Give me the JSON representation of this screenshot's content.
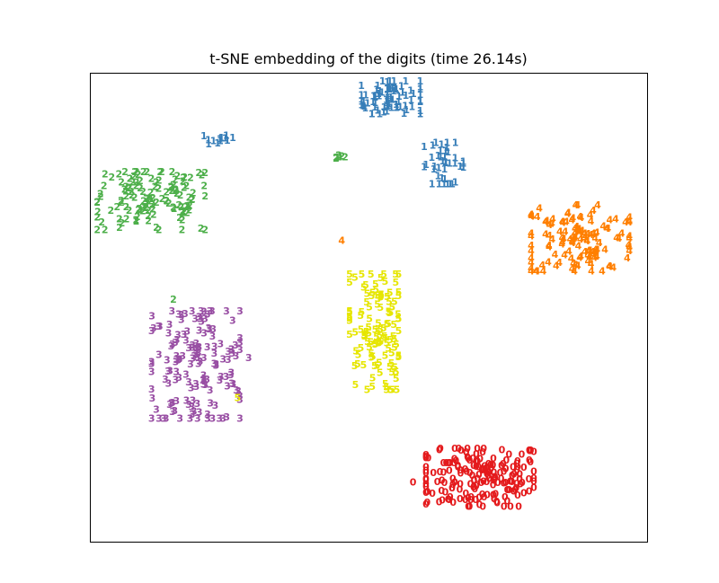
{
  "chart_data": {
    "type": "scatter",
    "title": "t-SNE embedding of the digits (time 26.14s)",
    "xlabel": "",
    "ylabel": "",
    "x_ticks": [],
    "y_ticks": [],
    "xlim": [
      0,
      1
    ],
    "ylim": [
      0,
      1
    ],
    "grid": false,
    "legend": null,
    "marker": "digit text label",
    "series": [
      {
        "label": "0",
        "color": "#e41a1c",
        "center": [
          0.7,
          0.13
        ],
        "spread": [
          0.11,
          0.07
        ],
        "count": 180
      },
      {
        "label": "1",
        "color": "#377eb8",
        "center": [
          0.54,
          0.94
        ],
        "spread": [
          0.06,
          0.04
        ],
        "count": 80
      },
      {
        "label": "1",
        "color": "#377eb8",
        "center": [
          0.23,
          0.85
        ],
        "spread": [
          0.03,
          0.01
        ],
        "count": 12
      },
      {
        "label": "1",
        "color": "#377eb8",
        "center": [
          0.635,
          0.8
        ],
        "spread": [
          0.04,
          0.05
        ],
        "count": 40
      },
      {
        "label": "2",
        "color": "#4daf4a",
        "center": [
          0.11,
          0.72
        ],
        "spread": [
          0.11,
          0.07
        ],
        "count": 130
      },
      {
        "label": "2",
        "color": "#4daf4a",
        "center": [
          0.455,
          0.815
        ],
        "spread": [
          0.015,
          0.005
        ],
        "count": 6
      },
      {
        "label": "3",
        "color": "#984ea3",
        "center": [
          0.19,
          0.37
        ],
        "spread": [
          0.09,
          0.13
        ],
        "count": 150
      },
      {
        "label": "4",
        "color": "#ff7f00",
        "center": [
          0.88,
          0.64
        ],
        "spread": [
          0.1,
          0.08
        ],
        "count": 130
      },
      {
        "label": "5",
        "color": "#e6e600",
        "center": [
          0.51,
          0.44
        ],
        "spread": [
          0.05,
          0.14
        ],
        "count": 120
      }
    ],
    "outliers": [
      {
        "label": "4",
        "color": "#ff7f00",
        "x": 0.452,
        "y": 0.635
      },
      {
        "label": "2",
        "color": "#4daf4a",
        "x": 0.15,
        "y": 0.51
      },
      {
        "label": "5",
        "color": "#e6e600",
        "x": 0.265,
        "y": 0.3
      },
      {
        "label": "0",
        "color": "#e41a1c",
        "x": 0.58,
        "y": 0.12
      },
      {
        "label": "3",
        "color": "#984ea3",
        "x": 0.285,
        "y": 0.385
      }
    ]
  }
}
